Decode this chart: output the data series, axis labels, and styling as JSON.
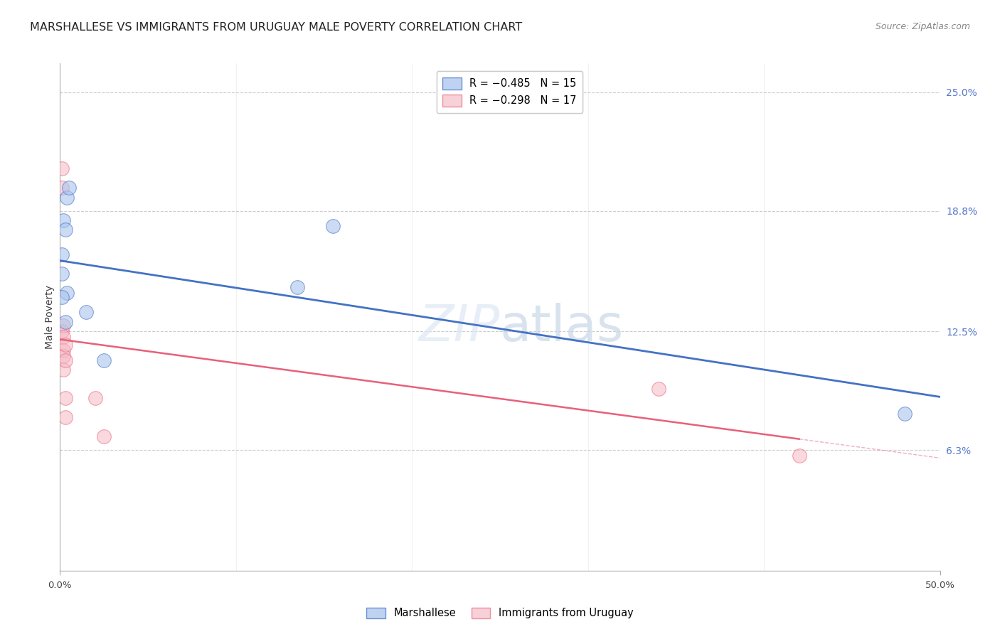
{
  "title": "MARSHALLESE VS IMMIGRANTS FROM URUGUAY MALE POVERTY CORRELATION CHART",
  "source": "Source: ZipAtlas.com",
  "xlim": [
    0.0,
    0.5
  ],
  "ylim": [
    0.0,
    0.265
  ],
  "ylabel": "Male Poverty",
  "ylabel_ticks": [
    0.063,
    0.125,
    0.188,
    0.25
  ],
  "ylabel_tick_labels": [
    "6.3%",
    "12.5%",
    "18.8%",
    "25.0%"
  ],
  "watermark": "ZIPatlas",
  "marshallese_x": [
    0.001,
    0.001,
    0.004,
    0.005,
    0.002,
    0.003,
    0.003,
    0.004,
    0.001,
    0.015,
    0.025,
    0.135,
    0.155,
    0.48
  ],
  "marshallese_y": [
    0.165,
    0.155,
    0.195,
    0.2,
    0.183,
    0.178,
    0.13,
    0.145,
    0.143,
    0.135,
    0.11,
    0.148,
    0.18,
    0.082
  ],
  "uruguay_x": [
    0.001,
    0.001,
    0.001,
    0.002,
    0.002,
    0.002,
    0.002,
    0.002,
    0.003,
    0.003,
    0.003,
    0.003,
    0.02,
    0.025,
    0.34,
    0.42
  ],
  "uruguay_y": [
    0.21,
    0.2,
    0.125,
    0.128,
    0.122,
    0.115,
    0.112,
    0.105,
    0.118,
    0.11,
    0.09,
    0.08,
    0.09,
    0.07,
    0.095,
    0.06
  ],
  "blue_color": "#aac4ed",
  "pink_color": "#f5b8c4",
  "blue_line_color": "#4472c4",
  "pink_line_color": "#e8607a",
  "background_color": "#ffffff",
  "grid_color": "#cccccc",
  "right_tick_color": "#5577cc",
  "title_fontsize": 11.5,
  "axis_label_fontsize": 10,
  "tick_fontsize": 9.5,
  "source_fontsize": 9
}
